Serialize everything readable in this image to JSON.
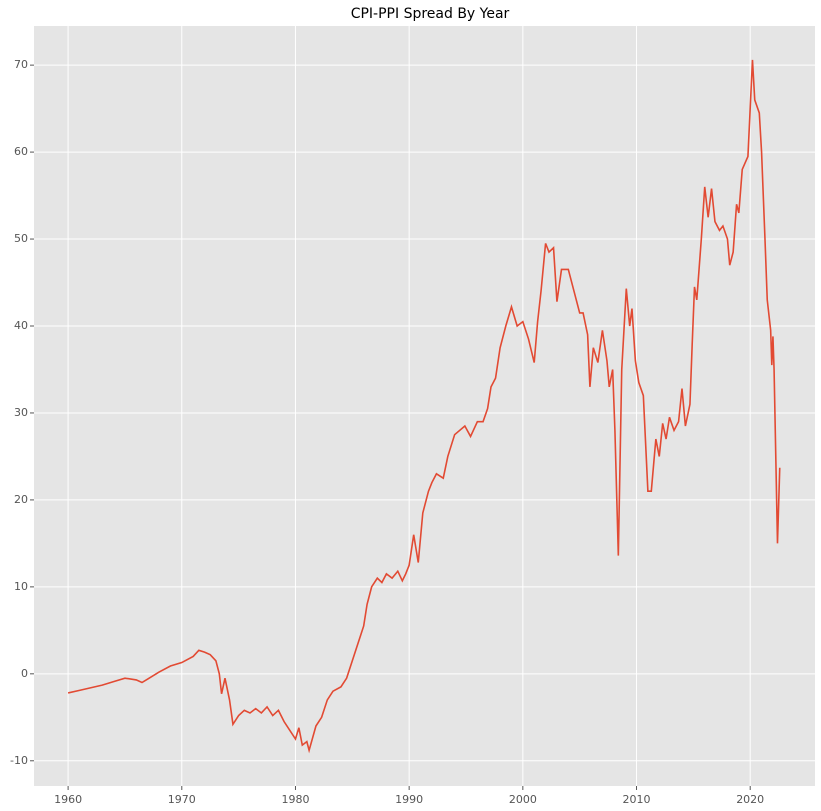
{
  "chart_data": {
    "type": "line",
    "title": "CPI-PPI Spread By Year",
    "x": [
      1960.0,
      1961.0,
      1962.0,
      1963.0,
      1964.0,
      1965.0,
      1966.0,
      1966.5,
      1967.0,
      1968.0,
      1969.0,
      1970.0,
      1971.0,
      1971.5,
      1972.0,
      1972.5,
      1973.0,
      1973.3,
      1973.5,
      1973.8,
      1974.2,
      1974.5,
      1975.0,
      1975.5,
      1976.0,
      1976.5,
      1977.0,
      1977.5,
      1978.0,
      1978.5,
      1979.0,
      1979.5,
      1980.0,
      1980.3,
      1980.6,
      1981.0,
      1981.2,
      1981.8,
      1982.3,
      1982.8,
      1983.3,
      1984.0,
      1984.5,
      1985.0,
      1985.5,
      1986.0,
      1986.3,
      1986.7,
      1987.2,
      1987.6,
      1988.0,
      1988.5,
      1989.0,
      1989.4,
      1989.7,
      1990.0,
      1990.4,
      1990.8,
      1991.2,
      1991.7,
      1992.0,
      1992.4,
      1993.0,
      1993.4,
      1994.0,
      1994.9,
      1995.4,
      1996.0,
      1996.5,
      1996.9,
      1997.2,
      1997.6,
      1998.0,
      1998.5,
      1999.0,
      1999.5,
      2000.0,
      2000.5,
      2001.0,
      2001.3,
      2001.6,
      2002.0,
      2002.3,
      2002.7,
      2003.0,
      2003.4,
      2004.0,
      2004.5,
      2005.0,
      2005.3,
      2005.7,
      2005.9,
      2006.2,
      2006.6,
      2007.0,
      2007.4,
      2007.6,
      2007.9,
      2008.1,
      2008.4,
      2008.7,
      2009.1,
      2009.4,
      2009.6,
      2009.9,
      2010.2,
      2010.6,
      2011.0,
      2011.3,
      2011.7,
      2012.0,
      2012.3,
      2012.6,
      2012.9,
      2013.3,
      2013.7,
      2014.0,
      2014.3,
      2014.7,
      2014.9,
      2015.1,
      2015.3,
      2015.7,
      2016.0,
      2016.3,
      2016.6,
      2016.9,
      2017.3,
      2017.6,
      2018.0,
      2018.2,
      2018.5,
      2018.8,
      2019.0,
      2019.3,
      2019.8,
      2020.2,
      2020.4,
      2020.8,
      2021.0,
      2021.3,
      2021.5,
      2021.8,
      2021.9,
      2022.0,
      2022.1,
      2022.4,
      2022.6
    ],
    "series": [
      {
        "name": "CPI-PPI Spread",
        "color": "#e24a33",
        "values": [
          -2.2,
          -1.9,
          -1.6,
          -1.3,
          -0.9,
          -0.5,
          -0.7,
          -1.0,
          -0.6,
          0.2,
          0.9,
          1.3,
          2.0,
          2.7,
          2.5,
          2.2,
          1.5,
          0.0,
          -2.3,
          -0.5,
          -3.0,
          -5.8,
          -4.8,
          -4.2,
          -4.5,
          -4.0,
          -4.5,
          -3.8,
          -4.8,
          -4.2,
          -5.5,
          -6.5,
          -7.5,
          -6.2,
          -8.2,
          -7.8,
          -8.8,
          -6.0,
          -5.0,
          -3.0,
          -2.0,
          -1.5,
          -0.5,
          1.5,
          3.5,
          5.5,
          8.0,
          10.0,
          11.0,
          10.5,
          11.5,
          11.0,
          11.8,
          10.7,
          11.5,
          12.5,
          16.0,
          12.8,
          18.5,
          21.0,
          22.0,
          23.0,
          22.5,
          25.0,
          27.5,
          28.5,
          27.3,
          29.0,
          29.0,
          30.5,
          33.0,
          34.0,
          37.5,
          40.0,
          42.2,
          40.0,
          40.5,
          38.5,
          35.8,
          40.5,
          44.0,
          49.5,
          48.5,
          49.0,
          42.8,
          46.5,
          46.5,
          44.0,
          41.5,
          41.5,
          39.0,
          33.0,
          37.5,
          35.8,
          39.5,
          36.0,
          33.0,
          35.0,
          28.0,
          13.6,
          35.0,
          44.3,
          40.0,
          42.0,
          36.0,
          33.5,
          32.0,
          21.0,
          21.0,
          27.0,
          25.0,
          28.8,
          27.0,
          29.5,
          28.0,
          29.0,
          32.8,
          28.5,
          31.0,
          38.0,
          44.5,
          43.0,
          50.0,
          56.0,
          52.5,
          55.8,
          52.0,
          51.0,
          51.5,
          50.0,
          47.0,
          48.5,
          54.0,
          53.0,
          58.0,
          59.5,
          70.6,
          66.0,
          64.5,
          60.0,
          50.0,
          43.0,
          39.5,
          35.5,
          38.8,
          35.0,
          15.0,
          23.7
        ]
      }
    ],
    "xlim": [
      1957.0,
      2025.7
    ],
    "xticks": [
      1960,
      1970,
      1980,
      1990,
      2000,
      2010,
      2020
    ],
    "ylim": [
      -12.9,
      74.5
    ],
    "yticks": [
      -10,
      0,
      10,
      20,
      30,
      40,
      50,
      60,
      70
    ],
    "grid": true
  }
}
